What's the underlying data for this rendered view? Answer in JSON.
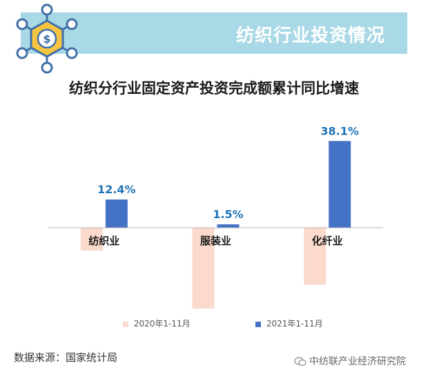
{
  "header": {
    "title": "纺织行业投资情况",
    "logo_icon": "dollar-network-icon"
  },
  "chart_data": {
    "type": "bar",
    "title": "纺织分行业固定资产投资完成额累计同比增速",
    "categories": [
      "纺织业",
      "服装业",
      "化纤业"
    ],
    "series": [
      {
        "name": "2020年1-11月",
        "values": [
          -10.0,
          -35.5,
          -25.0
        ],
        "color": "#fbd9cc"
      },
      {
        "name": "2021年1-11月",
        "values": [
          12.4,
          1.5,
          38.1
        ],
        "color": "#4472c4"
      }
    ],
    "data_labels": [
      "12.4%",
      "1.5%",
      "38.1%"
    ],
    "label_color": "#1f73b7",
    "ylim": [
      -37,
      40
    ],
    "grid": false,
    "legend_position": "bottom"
  },
  "footer": {
    "source": "数据来源：国家统计局",
    "watermark": "中纺联产业经济研究院"
  }
}
